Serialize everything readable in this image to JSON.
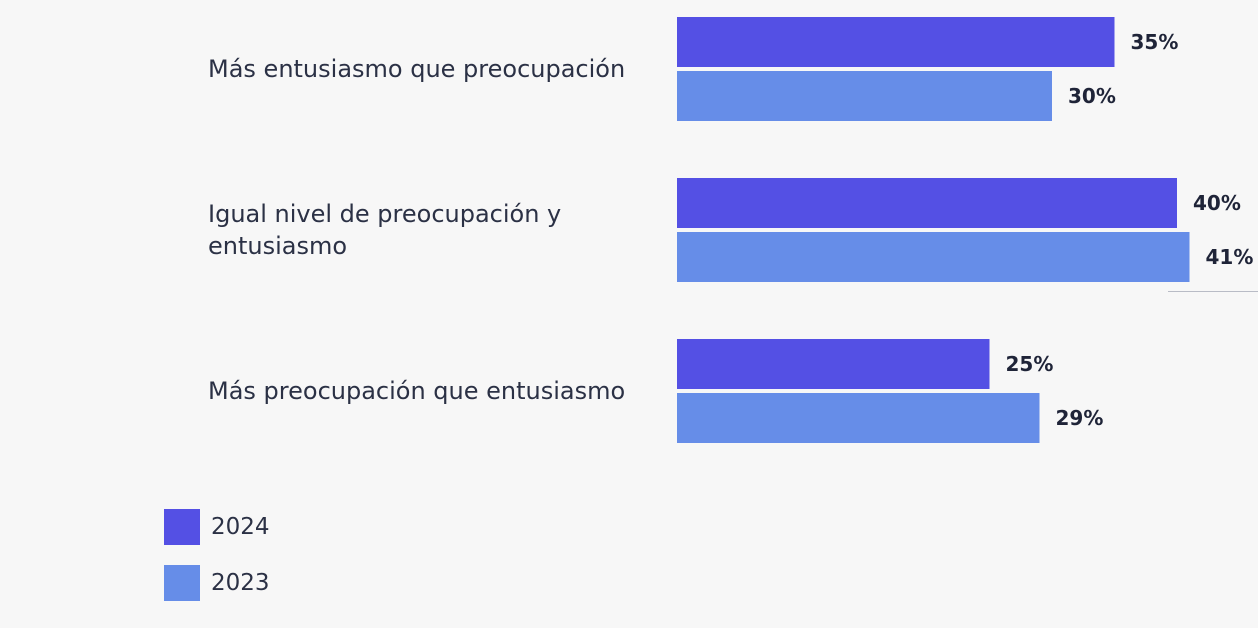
{
  "chart_data": {
    "type": "bar",
    "orientation": "horizontal",
    "categories": [
      [
        "Más entusiasmo que preocupación"
      ],
      [
        "Igual nivel de preocupación y",
        "entusiasmo"
      ],
      [
        "Más preocupación que entusiasmo"
      ]
    ],
    "series": [
      {
        "name": "2024",
        "color": "#5450e4",
        "values": [
          35,
          40,
          25
        ],
        "labels": [
          "35%",
          "40%",
          "25%"
        ]
      },
      {
        "name": "2023",
        "color": "#668de8",
        "values": [
          30,
          41,
          29
        ],
        "labels": [
          "30%",
          "41%",
          "29%"
        ]
      }
    ],
    "value_unit": "%",
    "legend_position": "bottom-left",
    "grid": false
  }
}
